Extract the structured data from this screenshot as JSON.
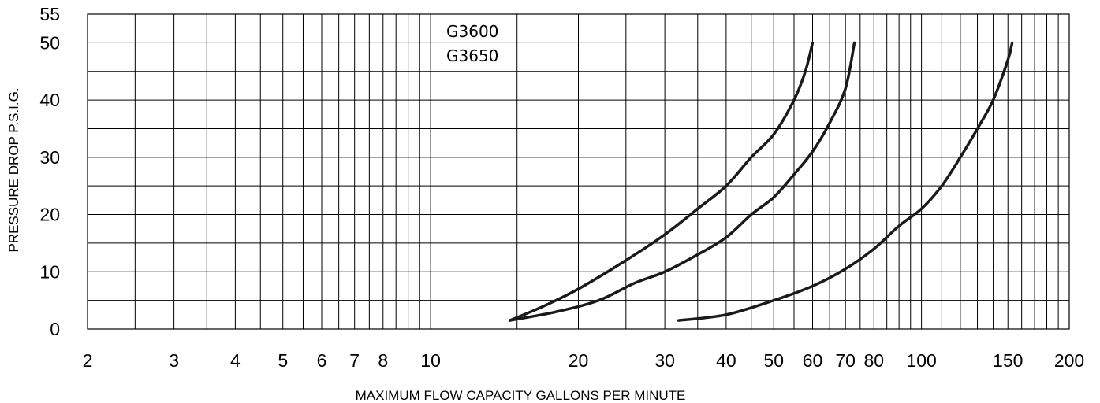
{
  "chart_data": {
    "type": "line",
    "xscale": "log",
    "xlabel": "MAXIMUM FLOW CAPACITY GALLONS PER MINUTE",
    "ylabel": "PRESSURE DROP  P.S.I.G.",
    "xlim": [
      2,
      200
    ],
    "ylim": [
      0,
      55
    ],
    "x_ticks": [
      2,
      3,
      4,
      5,
      6,
      7,
      8,
      10,
      20,
      30,
      40,
      50,
      60,
      70,
      80,
      100,
      150,
      200
    ],
    "x_tick_labels": [
      "2",
      "3",
      "4",
      "5",
      "6",
      "7",
      "8",
      "10",
      "20",
      "30",
      "40",
      "50",
      "60",
      "70",
      "80",
      "100",
      "150",
      "200"
    ],
    "y_ticks": [
      0,
      10,
      20,
      30,
      40,
      50,
      55
    ],
    "y_tick_labels": [
      "0",
      "10",
      "20",
      "30",
      "40",
      "50",
      "55"
    ],
    "annotations": [
      "G3600",
      "G3650"
    ],
    "grid": true,
    "series": [
      {
        "x": [
          14.5,
          17,
          20,
          25,
          30,
          35,
          40,
          45,
          50,
          55,
          58,
          60
        ],
        "y": [
          1.5,
          4,
          7,
          12,
          16.5,
          21,
          25,
          30,
          34,
          40,
          45,
          50
        ]
      },
      {
        "x": [
          14.5,
          18,
          22,
          26,
          30,
          35,
          40,
          45,
          50,
          55,
          60,
          65,
          70,
          73
        ],
        "y": [
          1.5,
          3,
          5,
          8,
          10,
          13,
          16,
          20,
          23,
          27,
          31,
          36,
          42,
          50
        ]
      },
      {
        "x": [
          32,
          40,
          50,
          60,
          70,
          80,
          90,
          100,
          110,
          120,
          130,
          140,
          150,
          153
        ],
        "y": [
          1.5,
          2.5,
          5,
          7.5,
          10.5,
          14,
          18,
          21,
          25,
          30,
          35,
          40,
          47,
          50
        ]
      }
    ]
  }
}
